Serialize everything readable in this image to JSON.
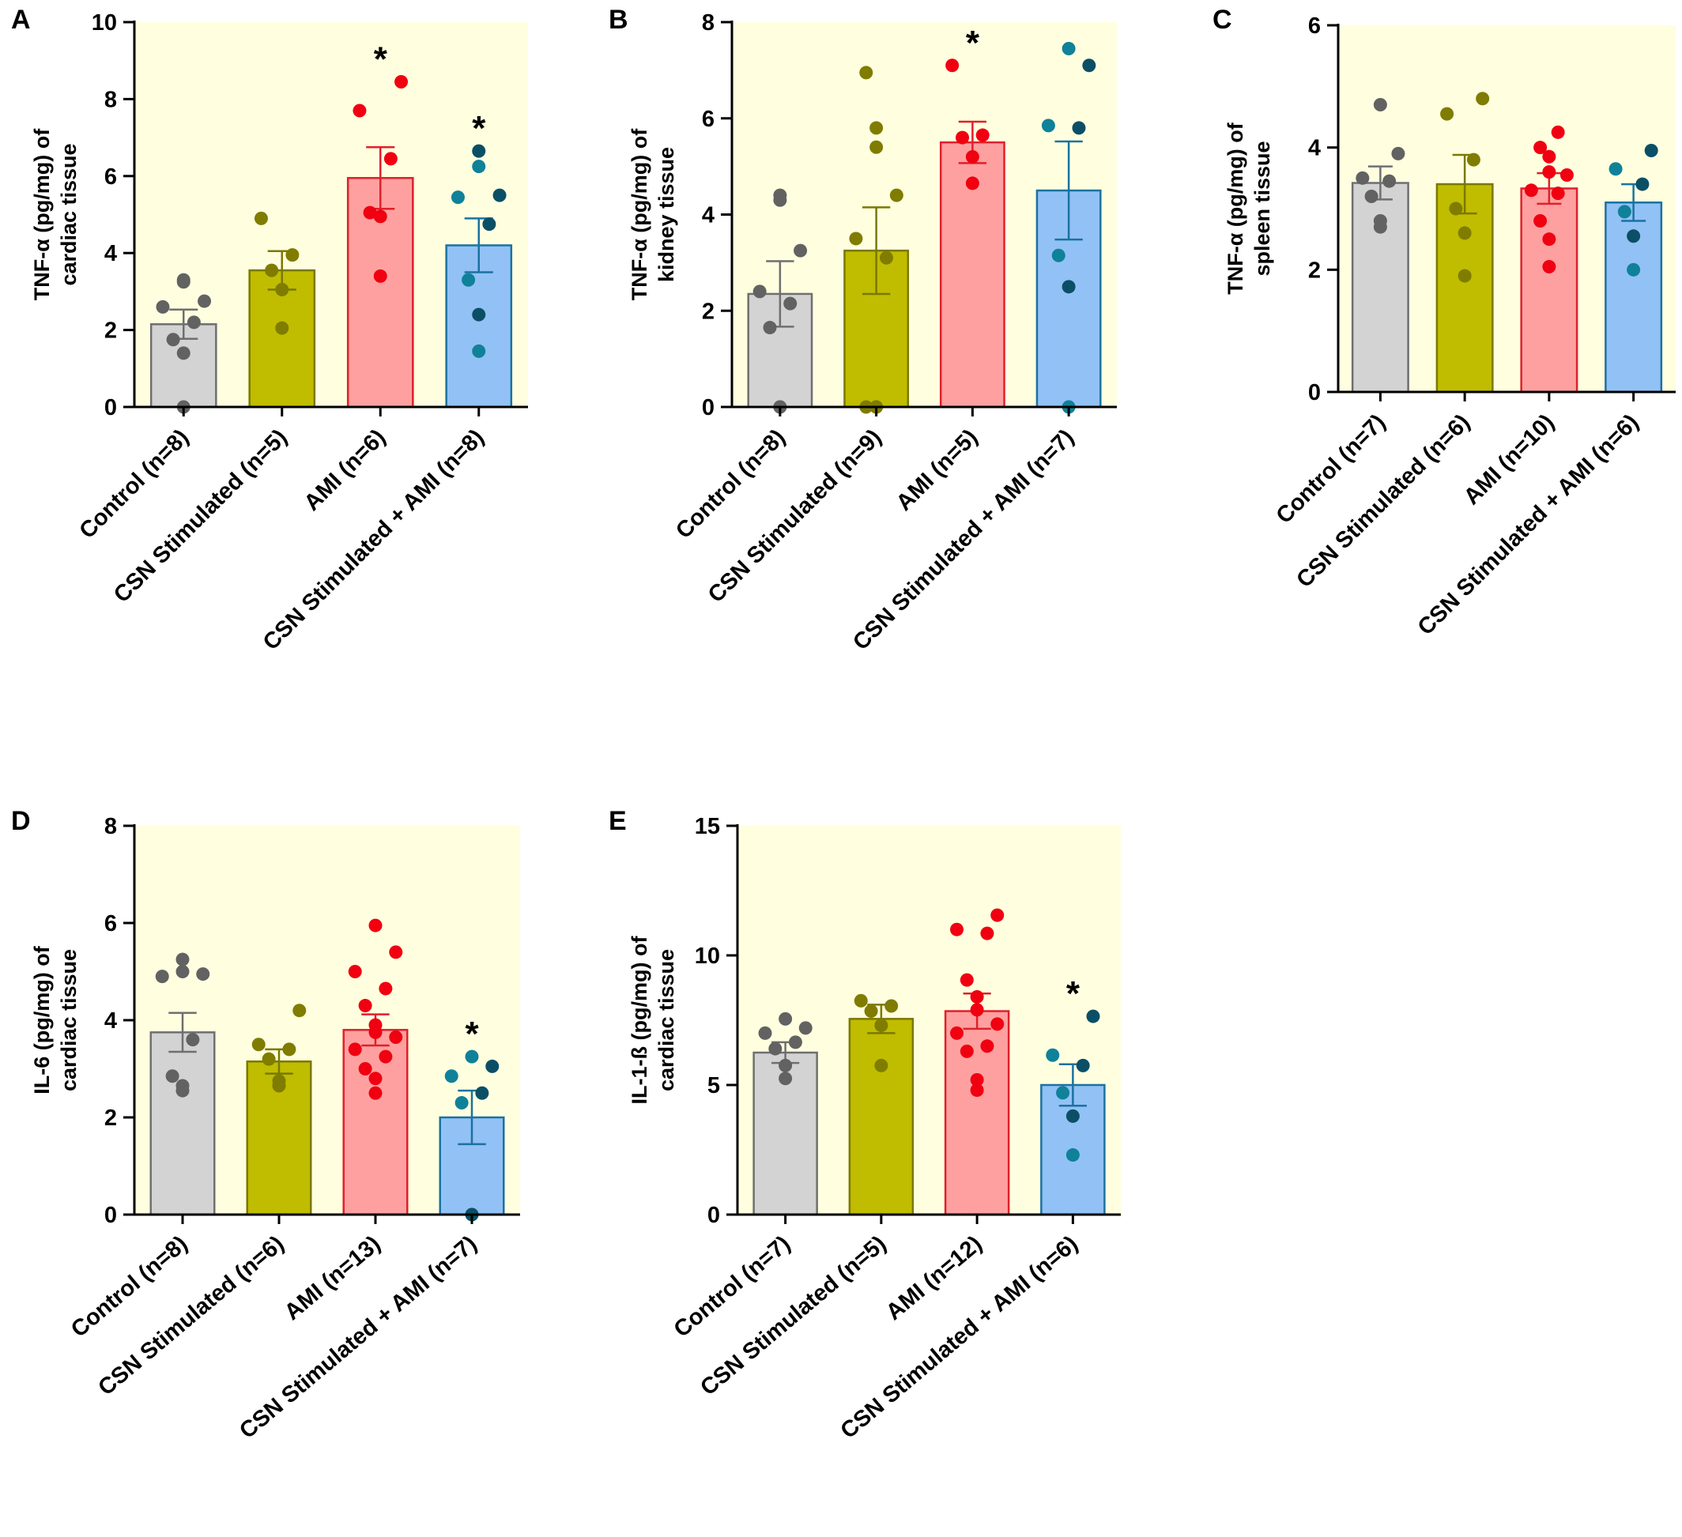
{
  "colors": {
    "plot_background": "#ffffe0",
    "groups": [
      {
        "fill": "#d3d3d3",
        "stroke": "#6f6f6f",
        "dot": "#626262"
      },
      {
        "fill": "#c0bc00",
        "stroke": "#7a7800",
        "dot": "#7f7c00"
      },
      {
        "fill": "#ffa0a0",
        "stroke": "#e0202a",
        "dot": "#f00010"
      },
      {
        "fill": "#92c1f6",
        "stroke": "#1a72a0",
        "dot": [
          "#0f8199",
          "#0b4f66"
        ]
      }
    ]
  },
  "chart_data": [
    {
      "panel": "A",
      "type": "bar",
      "ylabel_lines": [
        "TNF-α (pg/mg) of",
        "cardiac tissue"
      ],
      "ylim": [
        0,
        10
      ],
      "yticks": [
        0,
        2,
        4,
        6,
        8,
        10
      ],
      "categories": [
        "Control (n=8)",
        "CSN Stimulated (n=5)",
        "AMI (n=6)",
        "CSN Stimulated + AMI (n=8)"
      ],
      "means": [
        2.15,
        3.55,
        5.95,
        4.2
      ],
      "sem": [
        0.38,
        0.5,
        0.8,
        0.7
      ],
      "points": [
        [
          0.0,
          1.4,
          1.75,
          2.2,
          2.6,
          2.75,
          3.25,
          3.3
        ],
        [
          2.05,
          3.05,
          3.55,
          3.95,
          4.9
        ],
        [
          3.4,
          4.95,
          5.05,
          6.45,
          7.7,
          8.45
        ],
        [
          1.45,
          2.4,
          3.3,
          4.75,
          5.45,
          5.5,
          6.25,
          6.65
        ]
      ],
      "significance": [
        "",
        "",
        "*",
        "*"
      ]
    },
    {
      "panel": "B",
      "type": "bar",
      "ylabel_lines": [
        "TNF-α (pg/mg) of",
        "kidney tissue"
      ],
      "ylim": [
        0,
        8
      ],
      "yticks": [
        0,
        2,
        4,
        6,
        8
      ],
      "categories": [
        "Control (n=8)",
        "CSN Stimulated (n=9)",
        "AMI (n=5)",
        "CSN Stimulated + AMI (n=7)"
      ],
      "means": [
        2.35,
        3.25,
        5.5,
        4.5
      ],
      "sem": [
        0.68,
        0.9,
        0.43,
        1.02
      ],
      "points": [
        [
          0.0,
          0.0,
          1.65,
          2.15,
          2.4,
          3.25,
          4.3,
          4.4
        ],
        [
          0.0,
          0.0,
          0.0,
          3.1,
          3.5,
          4.4,
          5.4,
          5.8,
          6.95
        ],
        [
          4.65,
          5.2,
          5.6,
          5.65,
          7.1
        ],
        [
          0.0,
          2.5,
          3.15,
          5.8,
          5.85,
          7.1,
          7.45
        ]
      ],
      "significance": [
        "",
        "",
        "*",
        ""
      ]
    },
    {
      "panel": "C",
      "type": "bar",
      "ylabel_lines": [
        "TNF-α (pg/mg) of",
        "spleen tissue"
      ],
      "ylim": [
        0,
        6
      ],
      "yticks": [
        0,
        2,
        4,
        6
      ],
      "categories": [
        "Control (n=7)",
        "CSN Stimulated (n=6)",
        "AMI (n=10)",
        "CSN Stimulated + AMI (n=6)"
      ],
      "means": [
        3.42,
        3.4,
        3.33,
        3.1
      ],
      "sem": [
        0.27,
        0.48,
        0.25,
        0.3
      ],
      "points": [
        [
          2.7,
          2.8,
          3.2,
          3.45,
          3.5,
          3.9,
          4.7
        ],
        [
          1.9,
          2.6,
          3.0,
          3.8,
          4.55,
          4.8
        ],
        [
          2.05,
          2.5,
          2.8,
          3.25,
          3.3,
          3.55,
          3.6,
          3.85,
          4.0,
          4.25
        ],
        [
          2.0,
          2.55,
          2.95,
          3.4,
          3.65,
          3.95
        ]
      ],
      "significance": [
        "",
        "",
        "",
        ""
      ]
    },
    {
      "panel": "D",
      "type": "bar",
      "ylabel_lines": [
        "IL-6 (pg/mg) of",
        "cardiac tissue"
      ],
      "ylim": [
        0,
        8
      ],
      "yticks": [
        0,
        2,
        4,
        6,
        8
      ],
      "categories": [
        "Control (n=8)",
        "CSN Stimulated (n=6)",
        "AMI (n=13)",
        "CSN Stimulated + AMI (n=7)"
      ],
      "means": [
        3.75,
        3.15,
        3.8,
        2.0
      ],
      "sem": [
        0.4,
        0.25,
        0.32,
        0.55
      ],
      "points": [
        [
          2.55,
          2.65,
          2.85,
          3.6,
          4.9,
          4.95,
          5.0,
          5.25
        ],
        [
          2.65,
          2.75,
          3.2,
          3.4,
          3.5,
          4.2
        ],
        [
          2.5,
          2.8,
          3.0,
          3.25,
          3.4,
          3.65,
          3.75,
          3.9,
          4.3,
          4.65,
          5.0,
          5.4,
          5.95
        ],
        [
          0.0,
          0.0,
          2.3,
          2.5,
          2.85,
          3.05,
          3.25
        ]
      ],
      "significance": [
        "",
        "",
        "",
        "*"
      ]
    },
    {
      "panel": "E",
      "type": "bar",
      "ylabel_lines": [
        "IL-1-ß (pg/mg) of",
        "cardiac tissue"
      ],
      "ylim": [
        0,
        15
      ],
      "yticks": [
        0,
        5,
        10,
        15
      ],
      "categories": [
        "Control (n=7)",
        "CSN Stimulated (n=5)",
        "AMI (n=12)",
        "CSN Stimulated + AMI (n=6)"
      ],
      "means": [
        6.25,
        7.55,
        7.85,
        5.0
      ],
      "sem": [
        0.4,
        0.55,
        0.68,
        0.8
      ],
      "points": [
        [
          5.25,
          5.75,
          6.4,
          6.65,
          7.0,
          7.2,
          7.55
        ],
        [
          5.75,
          7.3,
          7.85,
          8.05,
          8.25
        ],
        [
          4.8,
          5.2,
          6.3,
          6.5,
          7.0,
          7.35,
          7.9,
          8.4,
          9.05,
          10.85,
          11.0,
          11.55
        ],
        [
          2.3,
          3.8,
          4.7,
          5.75,
          6.15,
          7.65
        ]
      ],
      "significance": [
        "",
        "",
        "",
        "*"
      ]
    }
  ]
}
